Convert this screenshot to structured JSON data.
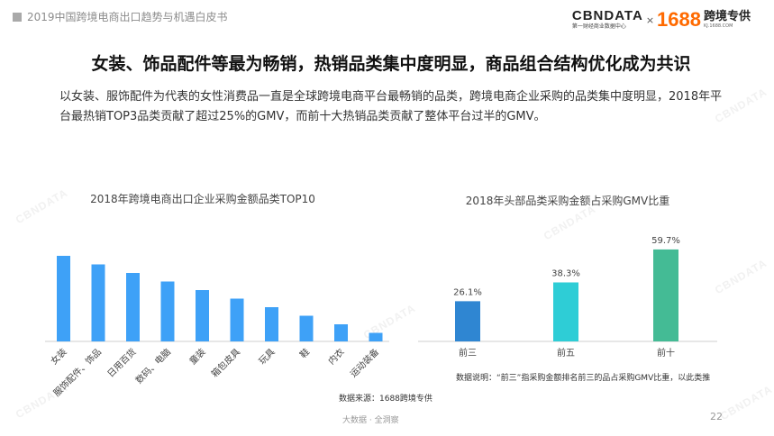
{
  "header": {
    "tag": "2019中国跨境电商出口趋势与机遇白皮书"
  },
  "logo": {
    "cbn_name": "CBNDATA",
    "cbn_sub": "第一财经商业数据中心",
    "times": "×",
    "brand_1688": "1688",
    "kj_name": "跨境专供",
    "kj_url": "KJ.1688.COM"
  },
  "watermark": "CBNDATA",
  "title": "女装、饰品配件等最为畅销，热销品类集中度明显，商品组合结构优化成为共识",
  "description": "以女装、服饰配件为代表的女性消费品一直是全球跨境电商平台最畅销的品类，跨境电商企业采购的品类集中度明显，2018年平台最热销TOP3品类贡献了超过25%的GMV，而前十大热销品类贡献了整体平台过半的GMV。",
  "chart_data": [
    {
      "type": "bar",
      "title": "2018年跨境电商出口企业采购金额品类TOP10",
      "categories": [
        "女装",
        "服饰配件、饰品",
        "日用百货",
        "数码、电脑",
        "童装",
        "箱包皮具",
        "玩具",
        "鞋",
        "内衣",
        "运动装备"
      ],
      "values": [
        100,
        90,
        80,
        70,
        60,
        50,
        40,
        30,
        20,
        10
      ],
      "color": "#3ea1f7",
      "grid": false
    },
    {
      "type": "bar",
      "title": "2018年头部品类采购金额占采购GMV比重",
      "categories": [
        "前三",
        "前五",
        "前十"
      ],
      "values": [
        26.1,
        38.3,
        59.7
      ],
      "labels": [
        "26.1%",
        "38.3%",
        "59.7%"
      ],
      "colors": [
        "#2f86d2",
        "#2ecdd6",
        "#44bb95"
      ],
      "ylim": [
        0,
        100
      ],
      "grid": false
    }
  ],
  "notes": {
    "source": "数据来源：1688跨境专供",
    "explanation": "数据说明：“前三”指采购金额排名前三的品占采购GMV比重，以此类推"
  },
  "footer": {
    "text": "大数据 · 全洞察",
    "page": "22"
  }
}
